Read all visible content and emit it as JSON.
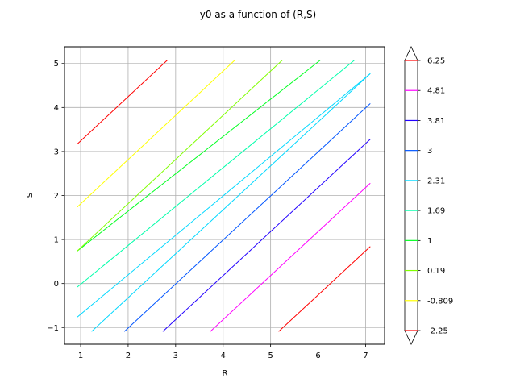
{
  "chart_data": {
    "type": "contour",
    "title": "y0 as a function of (R,S)",
    "xlabel": "R",
    "ylabel": "S",
    "xlim": [
      0.66,
      7.4
    ],
    "ylim": [
      -1.38,
      5.38
    ],
    "grid": true,
    "x_ticks": [
      1,
      2,
      3,
      4,
      5,
      6,
      7
    ],
    "y_ticks": [
      -1,
      0,
      1,
      2,
      3,
      4,
      5
    ],
    "x_tick_labels": [
      "1",
      "2",
      "3",
      "4",
      "5",
      "6",
      "7"
    ],
    "y_tick_labels": [
      "−1",
      "0",
      "1",
      "2",
      "3",
      "4",
      "5"
    ],
    "colorbar": {
      "levels": [
        -2.25,
        -0.809,
        0.19,
        1,
        1.69,
        2.31,
        3,
        3.81,
        4.81,
        6.25
      ],
      "labels": [
        "-2.25",
        "-0.809",
        "0.19",
        "1",
        "1.69",
        "2.31",
        "3",
        "3.81",
        "4.81",
        "6.25"
      ],
      "colors": [
        "#ff0000",
        "#ffff00",
        "#80ff00",
        "#00ff20",
        "#00ffaa",
        "#00d8ff",
        "#0055ff",
        "#2200ff",
        "#ff00ff",
        "#ff0000"
      ],
      "extend": "both"
    },
    "series": [
      {
        "name": "6.25",
        "color": "#ff0000",
        "points": [
          [
            5.17,
            -1.09
          ],
          [
            7.1,
            0.84
          ]
        ]
      },
      {
        "name": "4.81",
        "color": "#ff00ff",
        "points": [
          [
            3.73,
            -1.09
          ],
          [
            7.1,
            2.28
          ]
        ]
      },
      {
        "name": "3.81",
        "color": "#2200ff",
        "points": [
          [
            2.73,
            -1.09
          ],
          [
            7.1,
            3.28
          ]
        ]
      },
      {
        "name": "3",
        "color": "#0055ff",
        "points": [
          [
            1.92,
            -1.09
          ],
          [
            7.1,
            4.09
          ]
        ]
      },
      {
        "name": "2.31",
        "color": "#00d8ff",
        "points": [
          [
            1.23,
            -1.09
          ],
          [
            7.1,
            4.77
          ]
        ]
      },
      {
        "name": "2.31",
        "color": "#00d8ff",
        "points": [
          [
            0.93,
            -0.76
          ],
          [
            7.1,
            4.77
          ]
        ]
      },
      {
        "name": "1.69",
        "color": "#00ffaa",
        "points": [
          [
            0.93,
            -0.08
          ],
          [
            6.77,
            5.08
          ]
        ]
      },
      {
        "name": "1",
        "color": "#00ff20",
        "points": [
          [
            0.93,
            0.74
          ],
          [
            6.05,
            5.08
          ]
        ]
      },
      {
        "name": "0.19",
        "color": "#80ff00",
        "points": [
          [
            0.93,
            0.74
          ],
          [
            5.25,
            5.08
          ]
        ]
      },
      {
        "name": "-0.809",
        "color": "#ffff00",
        "points": [
          [
            0.93,
            1.74
          ],
          [
            4.25,
            5.08
          ]
        ]
      },
      {
        "name": "-2.25",
        "color": "#ff0000",
        "points": [
          [
            0.93,
            3.17
          ],
          [
            2.83,
            5.08
          ]
        ]
      }
    ]
  }
}
